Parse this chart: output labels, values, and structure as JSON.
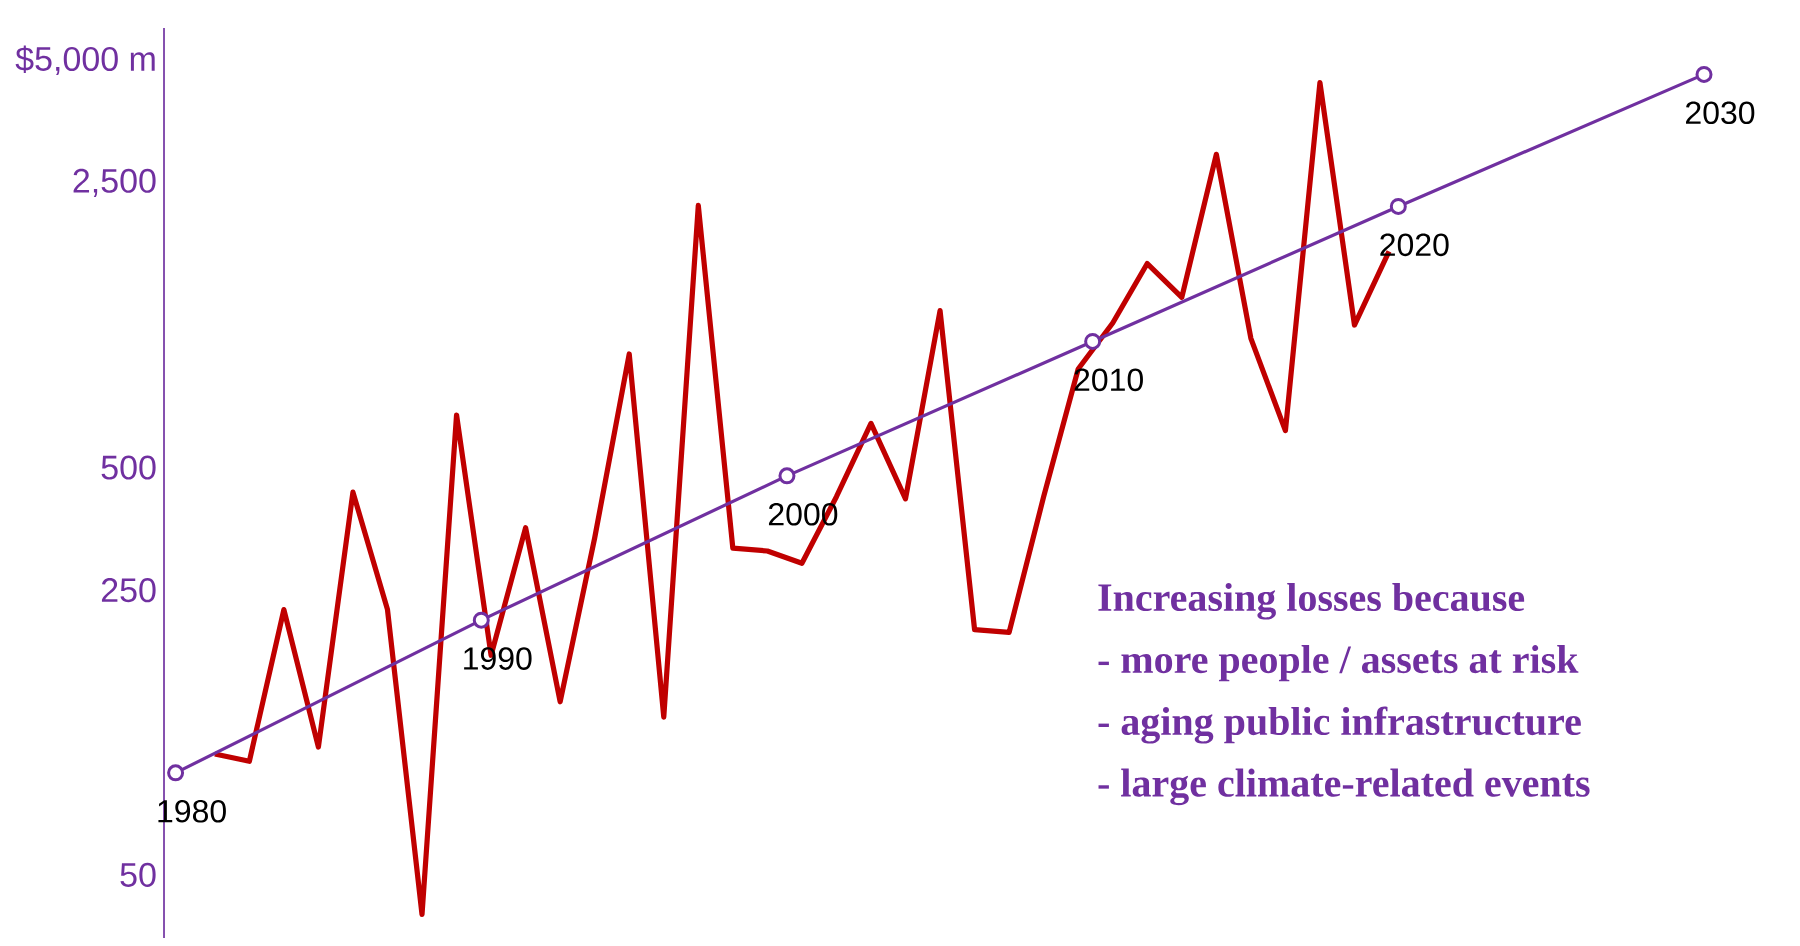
{
  "chart_data": [
    {
      "type": "line",
      "categories": [
        null,
        null,
        null,
        null,
        null,
        null,
        null,
        null,
        null,
        null,
        null,
        null,
        null,
        null,
        null,
        null,
        null,
        null,
        null,
        null,
        null,
        null,
        null,
        null,
        null,
        null,
        null,
        null,
        null,
        null,
        null,
        null,
        null,
        null,
        null
      ],
      "series": [
        {
          "color": "#c00000",
          "values": [
            99,
            95,
            224,
            103,
            435,
            224,
            40,
            673,
            173,
            356,
            133,
            336,
            950,
            122,
            2200,
            317,
            312,
            291,
            424,
            642,
            419,
            1214,
            200,
            197,
            424,
            873,
            1132,
            1584,
            1309,
            2937,
            1038,
            616,
            4408,
            1119,
            1697
          ]
        }
      ],
      "ylim": [
        35,
        6000
      ],
      "log": "y",
      "tick_labels": "y",
      "yticks": [
        {
          "value": 50,
          "label": "50"
        },
        {
          "value": 250,
          "label": "250"
        },
        {
          "value": 500,
          "label": "500"
        },
        {
          "value": 2500,
          "label": "2,500"
        },
        {
          "value": 5000,
          "label": "$5,000 m"
        }
      ],
      "annotations": [
        "Increasing losses because",
        "- more people / assets at risk",
        "- aging public infrastructure",
        "- large climate-related events"
      ]
    },
    {
      "type": "line",
      "categories": [
        null,
        null,
        null,
        null,
        null,
        null
      ],
      "series": [
        {
          "color": "#7030a0",
          "values": [
            89,
            211,
            477,
            1020,
            2188,
            4615
          ]
        }
      ],
      "marker": "circle",
      "ylim": [
        35,
        6000
      ],
      "log": "y",
      "tick_labels": false,
      "annotations": [
        "1980",
        "1990",
        "2000",
        "2010",
        "2020",
        "2030"
      ]
    }
  ]
}
